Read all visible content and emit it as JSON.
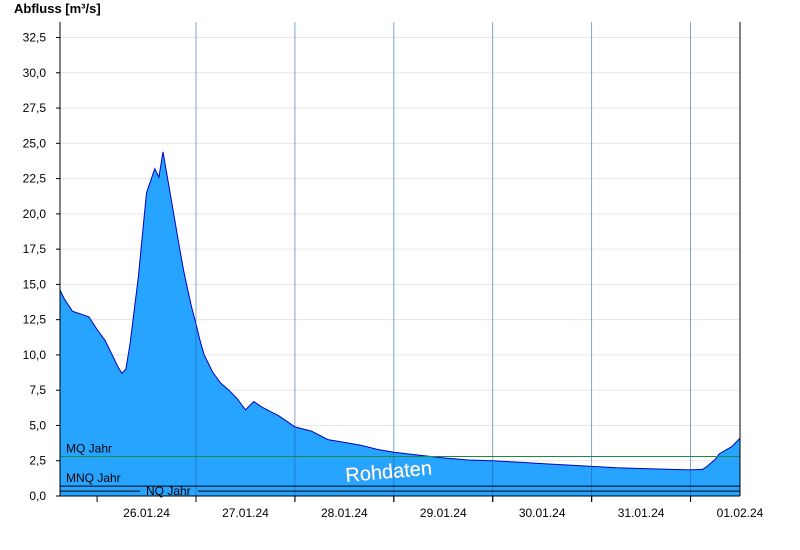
{
  "chart_data": {
    "type": "area",
    "ylabel": "Abfluss [m³/s]",
    "xlabel": "",
    "title": "",
    "ylim": [
      0,
      33.6
    ],
    "yticks": [
      "0,0",
      "2,5",
      "5,0",
      "7,5",
      "10,0",
      "12,5",
      "15,0",
      "17,5",
      "20,0",
      "22,5",
      "25,0",
      "27,5",
      "30,0",
      "32,5"
    ],
    "xlim": [
      "25.01.24 15:00",
      "01.02.24 12:00"
    ],
    "xticks": [
      "26.01.24",
      "27.01.24",
      "28.01.24",
      "29.01.24",
      "30.01.24",
      "31.01.24",
      "01.02.24"
    ],
    "grid": true,
    "fill_color": "#27a4ff",
    "line_color": "#0000c0",
    "series": [
      {
        "x": [
          "25.01.24 15:00",
          "25.01.24 16:00",
          "25.01.24 18:00",
          "25.01.24 22:00",
          "26.01.24 00:00",
          "26.01.24 02:00",
          "26.01.24 04:00",
          "26.01.24 05:00",
          "26.01.24 06:00",
          "26.01.24 07:00",
          "26.01.24 08:00",
          "26.01.24 10:00",
          "26.01.24 12:00",
          "26.01.24 14:00",
          "26.01.24 15:00",
          "26.01.24 16:00",
          "26.01.24 18:00",
          "26.01.24 20:00",
          "26.01.24 21:00",
          "26.01.24 22:00",
          "26.01.24 23:00",
          "27.01.24 00:00",
          "27.01.24 01:00",
          "27.01.24 02:00",
          "27.01.24 04:00",
          "27.01.24 06:00",
          "27.01.24 08:00",
          "27.01.24 10:00",
          "27.01.24 12:00",
          "27.01.24 14:00",
          "27.01.24 16:00",
          "27.01.24 18:00",
          "27.01.24 20:00",
          "27.01.24 22:00",
          "28.01.24 00:00",
          "28.01.24 04:00",
          "28.01.24 08:00",
          "28.01.24 12:00",
          "28.01.24 16:00",
          "28.01.24 20:00",
          "29.01.24 00:00",
          "29.01.24 06:00",
          "29.01.24 12:00",
          "29.01.24 18:00",
          "30.01.24 00:00",
          "30.01.24 06:00",
          "30.01.24 12:00",
          "30.01.24 18:00",
          "31.01.24 00:00",
          "31.01.24 06:00",
          "31.01.24 12:00",
          "31.01.24 18:00",
          "01.02.24 00:00",
          "01.02.24 03:00",
          "01.02.24 04:00",
          "01.02.24 06:00",
          "01.02.24 07:00",
          "01.02.24 10:00",
          "01.02.24 11:00",
          "01.02.24 12:00"
        ],
        "values": [
          14.6,
          14.0,
          13.1,
          12.7,
          11.8,
          11.0,
          9.8,
          9.2,
          8.7,
          9.0,
          10.8,
          15.5,
          21.5,
          23.2,
          22.6,
          24.4,
          21.0,
          17.6,
          16.0,
          14.6,
          13.3,
          12.2,
          11.0,
          10.0,
          8.8,
          8.0,
          7.5,
          6.9,
          6.1,
          6.7,
          6.3,
          6.0,
          5.7,
          5.3,
          4.9,
          4.6,
          4.0,
          3.8,
          3.6,
          3.3,
          3.1,
          2.9,
          2.7,
          2.55,
          2.5,
          2.4,
          2.3,
          2.2,
          2.1,
          2.0,
          1.95,
          1.9,
          1.85,
          1.9,
          2.1,
          2.6,
          3.0,
          3.5,
          3.8,
          4.1
        ]
      }
    ],
    "reference_lines": [
      {
        "label": "MQ Jahr",
        "value": 2.8,
        "color": "#1a8c3c"
      },
      {
        "label": "MNQ Jahr",
        "value": 0.7,
        "color": "#000000"
      },
      {
        "label": "NQ Jahr",
        "value": 0.35,
        "color": "#000000"
      }
    ],
    "annotation": "Rohdaten"
  }
}
